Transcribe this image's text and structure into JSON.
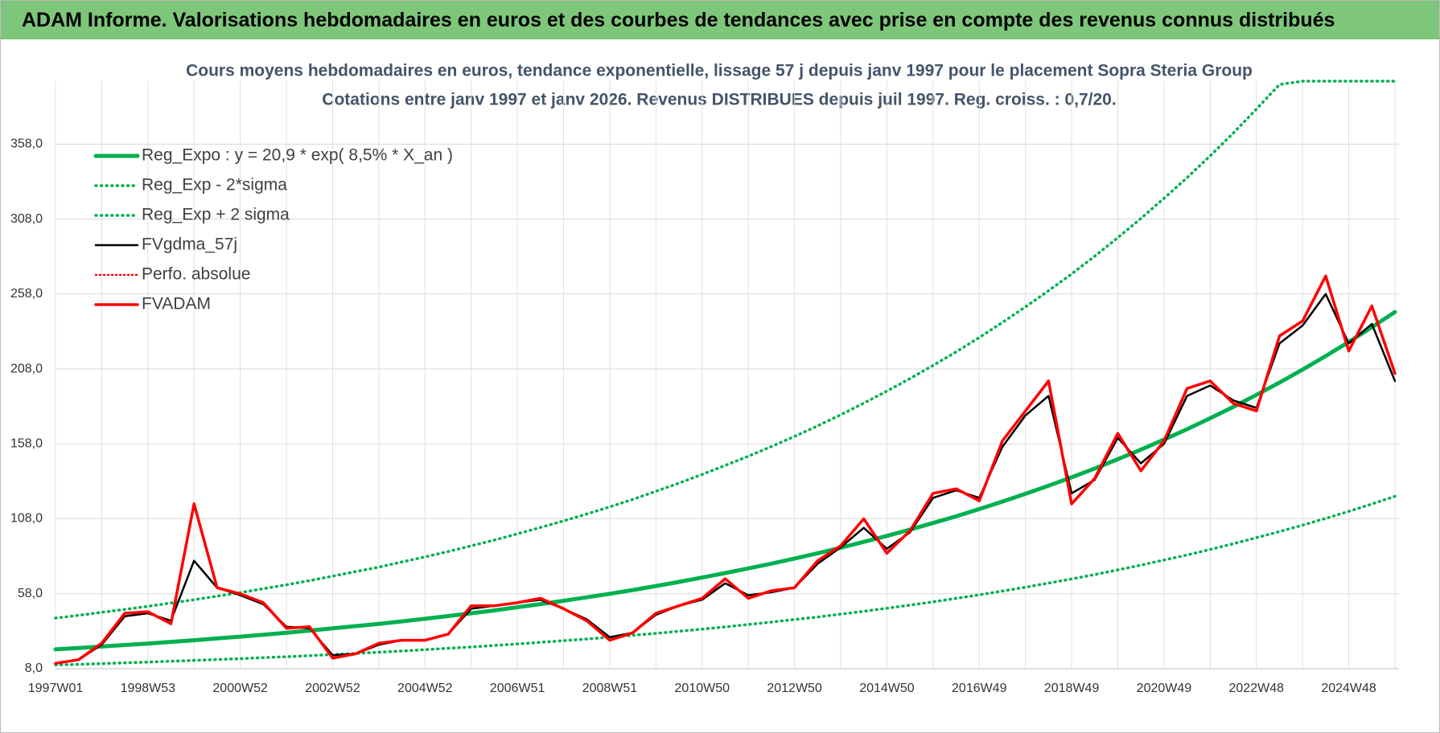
{
  "header": {
    "title": "ADAM Informe. Valorisations hebdomadaires en euros et des courbes de tendances avec prise en compte des revenus connus distribués"
  },
  "chart_data": {
    "type": "line",
    "title": "Cours moyens hebdomadaires en euros, tendance exponentielle, lissage 57 j depuis janv 1997 pour le placement Sopra Steria Group",
    "subtitle": "Cotations entre janv 1997 et janv 2026. Revenus DISTRIBUES depuis juil 1997. Reg. croiss. : 0,7/20.",
    "categories": [
      "1997W01",
      null,
      null,
      null,
      "1998W53",
      null,
      null,
      null,
      "2000W52",
      null,
      null,
      null,
      "2002W52",
      null,
      null,
      null,
      "2004W52",
      null,
      null,
      null,
      "2006W51",
      null,
      null,
      null,
      "2008W51",
      null,
      null,
      null,
      "2010W50",
      null,
      null,
      null,
      "2012W50",
      null,
      null,
      null,
      "2014W50",
      null,
      null,
      null,
      "2016W49",
      null,
      null,
      null,
      "2018W49",
      null,
      null,
      null,
      "2020W49",
      null,
      null,
      null,
      "2022W48",
      null,
      null,
      null,
      "2024W48",
      null,
      null
    ],
    "ylim": [
      8,
      400
    ],
    "yticks": [
      {
        "value": 8,
        "label": "8,0"
      },
      {
        "value": 58,
        "label": "58,0"
      },
      {
        "value": 108,
        "label": "108,0"
      },
      {
        "value": 158,
        "label": "158,0"
      },
      {
        "value": 208,
        "label": "208,0"
      },
      {
        "value": 258,
        "label": "258,0"
      },
      {
        "value": 308,
        "label": "308,0"
      },
      {
        "value": 358,
        "label": "358,0"
      }
    ],
    "grid": true,
    "legend": "top-left",
    "series": [
      {
        "name": "Reg_Expo : y = 20,9 * exp( 8,5% *  X_an )",
        "color": "#00b050",
        "style": "solid",
        "width": 5,
        "values": [
          20.9,
          21.8,
          22.8,
          23.8,
          24.8,
          25.9,
          27.0,
          28.2,
          29.4,
          30.7,
          32.0,
          33.4,
          34.9,
          36.4,
          37.9,
          39.6,
          41.3,
          43.1,
          45.0,
          46.9,
          49.0,
          51.1,
          53.3,
          55.6,
          58.0,
          60.5,
          63.2,
          65.9,
          68.8,
          71.8,
          74.9,
          78.1,
          81.5,
          85.0,
          88.7,
          92.6,
          96.6,
          100.8,
          105.2,
          109.7,
          114.5,
          119.5,
          124.7,
          130.1,
          135.7,
          141.6,
          147.8,
          154.2,
          160.9,
          167.8,
          175.1,
          182.7,
          190.7,
          198.9,
          207.6,
          216.6,
          226.0,
          235.8,
          246.0
        ]
      },
      {
        "name": "Reg_Exp - 2*sigma",
        "color": "#00b050",
        "style": "dotted",
        "width": 3.5,
        "values": [
          10.5,
          10.9,
          11.4,
          11.9,
          12.4,
          13.0,
          13.5,
          14.1,
          14.7,
          15.4,
          16.0,
          16.7,
          17.5,
          18.2,
          19.0,
          19.8,
          20.7,
          21.6,
          22.5,
          23.5,
          24.5,
          25.6,
          26.7,
          27.8,
          29.0,
          30.3,
          31.6,
          33.0,
          34.4,
          35.9,
          37.5,
          39.1,
          40.8,
          42.5,
          44.4,
          46.3,
          48.3,
          50.4,
          52.6,
          54.9,
          57.3,
          59.8,
          62.4,
          65.1,
          67.9,
          70.8,
          73.9,
          77.1,
          80.5,
          83.9,
          87.6,
          91.4,
          95.4,
          99.5,
          103.8,
          108.3,
          113.0,
          117.9,
          123.0
        ]
      },
      {
        "name": "Reg_Exp + 2 sigma",
        "color": "#00b050",
        "style": "dotted",
        "width": 3.5,
        "values": [
          41.8,
          43.6,
          45.6,
          47.6,
          49.6,
          51.8,
          54.0,
          56.4,
          58.8,
          61.4,
          64.0,
          66.8,
          69.8,
          72.8,
          75.8,
          79.2,
          82.6,
          86.2,
          90.0,
          93.8,
          98.0,
          102.2,
          106.6,
          111.2,
          116.0,
          121.0,
          126.4,
          131.8,
          137.6,
          143.6,
          149.8,
          156.2,
          163.0,
          170.0,
          177.4,
          185.2,
          193.2,
          201.6,
          210.4,
          219.4,
          229.0,
          239.0,
          249.4,
          260.2,
          271.4,
          283.2,
          295.6,
          308.4,
          321.8,
          335.6,
          350.2,
          365.4,
          381.4,
          397.8,
          400,
          400,
          400,
          400,
          400
        ]
      },
      {
        "name": "FVgdma_57j",
        "color": "#000000",
        "style": "solid",
        "width": 2.5,
        "values": [
          11.6,
          14,
          24,
          43,
          45,
          40,
          80,
          62,
          57,
          51,
          36,
          35,
          17,
          18,
          24,
          27,
          27,
          31,
          48,
          50,
          52,
          54,
          48,
          41,
          29,
          32,
          44,
          50,
          54,
          65,
          57,
          59,
          62,
          78,
          89,
          102,
          88,
          99,
          122,
          127,
          122,
          156,
          177,
          190,
          125,
          134,
          162,
          145,
          158,
          190,
          197,
          187,
          182,
          225,
          237,
          258,
          225,
          238,
          200
        ]
      },
      {
        "name": "Perfo. absolue",
        "color": "#ff0000",
        "style": "dotted",
        "width": 2.5,
        "values": [
          null,
          null,
          null,
          null,
          null,
          null,
          null,
          null,
          null,
          null,
          null,
          null,
          null,
          null,
          null,
          null,
          null,
          null,
          null,
          null,
          null,
          null,
          null,
          null,
          null,
          null,
          null,
          null,
          null,
          null,
          null,
          null,
          null,
          null,
          null,
          null,
          null,
          null,
          null,
          null,
          null,
          null,
          null,
          null,
          null,
          null,
          null,
          null,
          null,
          null,
          null,
          null,
          null,
          null,
          null,
          null,
          null,
          null,
          null
        ]
      },
      {
        "name": "FVADAM",
        "color": "#ff0000",
        "style": "solid",
        "width": 3.5,
        "values": [
          11.6,
          14,
          25,
          45,
          46,
          38,
          118,
          62,
          58,
          52,
          35,
          36,
          15,
          18,
          25,
          27,
          27,
          31,
          50,
          50,
          52,
          55,
          48,
          40,
          27,
          32,
          45,
          50,
          55,
          68,
          55,
          60,
          62,
          80,
          90,
          108,
          85,
          100,
          125,
          128,
          120,
          160,
          180,
          200,
          118,
          135,
          165,
          140,
          160,
          195,
          200,
          185,
          180,
          230,
          240,
          270,
          220,
          250,
          205
        ]
      }
    ]
  }
}
